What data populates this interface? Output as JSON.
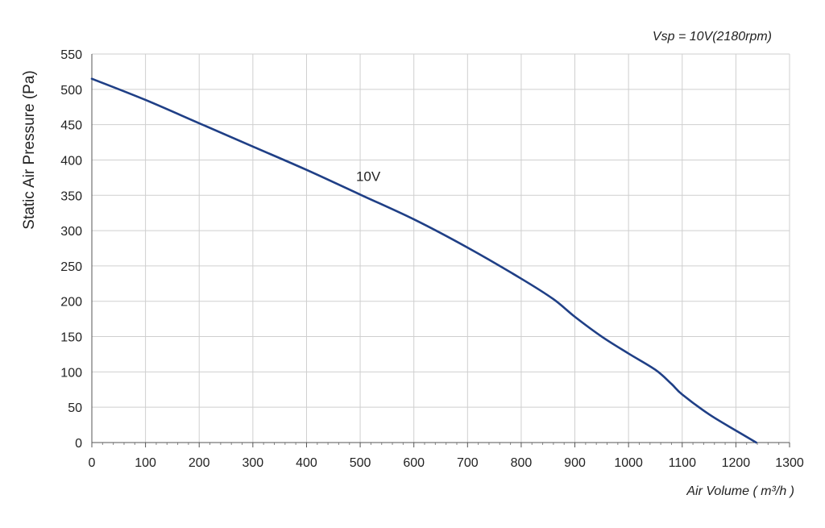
{
  "chart_data": {
    "type": "line",
    "title": "",
    "note": "Vsp = 10V(2180rpm)",
    "xlabel": "Air Volume ( m³/h )",
    "ylabel": "Static Air Pressure  (Pa)",
    "xlim": [
      0,
      1300
    ],
    "ylim": [
      0,
      550
    ],
    "x_ticks": [
      0,
      100,
      200,
      300,
      400,
      500,
      600,
      700,
      800,
      900,
      1000,
      1100,
      1200,
      1300
    ],
    "y_ticks": [
      0,
      50,
      100,
      150,
      200,
      250,
      300,
      350,
      400,
      450,
      500,
      550
    ],
    "x_minor_step": 20,
    "grid": true,
    "colors": {
      "series": "#1f3f86",
      "grid": "#cfcfcf",
      "axis": "#555555"
    },
    "series": [
      {
        "name": "10V",
        "label_at": [
          515,
          370
        ],
        "x": [
          0,
          100,
          200,
          300,
          400,
          500,
          600,
          700,
          800,
          860,
          900,
          950,
          1000,
          1050,
          1080,
          1100,
          1150,
          1200,
          1238
        ],
        "y": [
          515,
          485,
          452,
          419,
          386,
          351,
          316,
          276,
          232,
          203,
          178,
          150,
          126,
          103,
          83,
          68,
          40,
          17,
          0
        ]
      }
    ]
  }
}
